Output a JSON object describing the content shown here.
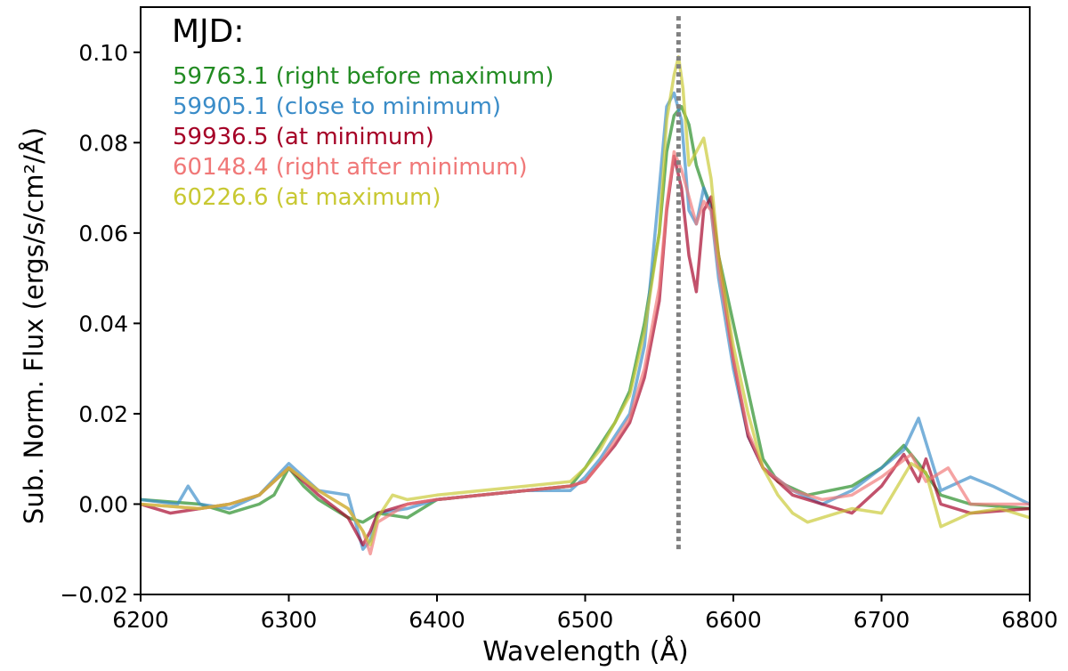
{
  "chart_data": {
    "type": "line",
    "title": "",
    "xlabel": "Wavelength (Å)",
    "ylabel": "Sub. Norm. Flux (ergs/s/cm²/Å)",
    "xlim": [
      6200,
      6800
    ],
    "ylim": [
      -0.02,
      0.11
    ],
    "xticks": [
      6200,
      6300,
      6400,
      6500,
      6600,
      6700,
      6800
    ],
    "xtick_labels": [
      "6200",
      "6300",
      "6400",
      "6500",
      "6600",
      "6700",
      "6800"
    ],
    "yticks": [
      -0.02,
      0.0,
      0.02,
      0.04,
      0.06,
      0.08,
      0.1
    ],
    "ytick_labels": [
      "−0.02",
      "0.00",
      "0.02",
      "0.04",
      "0.06",
      "0.08",
      "0.10"
    ],
    "grid": false,
    "legend": {
      "title": "MJD:",
      "position": "top-left"
    },
    "reference_line": {
      "x": 6563,
      "style": "dotted",
      "color": "#808080"
    },
    "series": [
      {
        "name": "59763.1 (right before maximum)",
        "color": "#228B22",
        "x": [
          6200,
          6240,
          6260,
          6280,
          6290,
          6300,
          6310,
          6320,
          6340,
          6350,
          6355,
          6360,
          6380,
          6400,
          6430,
          6460,
          6490,
          6500,
          6510,
          6520,
          6530,
          6540,
          6550,
          6555,
          6560,
          6565,
          6570,
          6575,
          6580,
          6585,
          6590,
          6600,
          6610,
          6620,
          6630,
          6650,
          6680,
          6700,
          6715,
          6725,
          6740,
          6760,
          6800
        ],
        "y": [
          0.001,
          0.0,
          -0.002,
          0.0,
          0.002,
          0.008,
          0.004,
          0.001,
          -0.003,
          -0.004,
          -0.003,
          -0.002,
          -0.003,
          0.001,
          0.002,
          0.003,
          0.004,
          0.008,
          0.013,
          0.018,
          0.025,
          0.04,
          0.06,
          0.078,
          0.086,
          0.088,
          0.084,
          0.075,
          0.07,
          0.066,
          0.055,
          0.04,
          0.025,
          0.01,
          0.005,
          0.002,
          0.004,
          0.008,
          0.013,
          0.009,
          0.002,
          0.0,
          -0.001
        ]
      },
      {
        "name": "59905.1 (close to minimum)",
        "color": "#3a8cc8",
        "x": [
          6200,
          6225,
          6232,
          6240,
          6260,
          6280,
          6300,
          6320,
          6340,
          6350,
          6355,
          6360,
          6380,
          6400,
          6430,
          6460,
          6490,
          6500,
          6510,
          6520,
          6530,
          6540,
          6550,
          6555,
          6560,
          6565,
          6570,
          6575,
          6580,
          6585,
          6590,
          6600,
          6610,
          6620,
          6640,
          6660,
          6680,
          6700,
          6715,
          6725,
          6740,
          6760,
          6775,
          6800
        ],
        "y": [
          0.001,
          0.0,
          0.004,
          0.0,
          -0.001,
          0.002,
          0.009,
          0.003,
          0.002,
          -0.01,
          -0.008,
          -0.002,
          -0.001,
          0.001,
          0.002,
          0.003,
          0.003,
          0.006,
          0.01,
          0.015,
          0.02,
          0.035,
          0.07,
          0.088,
          0.091,
          0.085,
          0.065,
          0.062,
          0.07,
          0.065,
          0.05,
          0.03,
          0.015,
          0.008,
          0.003,
          0.0,
          0.003,
          0.008,
          0.012,
          0.019,
          0.003,
          0.006,
          0.004,
          0.0
        ]
      },
      {
        "name": "59936.5 (at minimum)",
        "color": "#a50026",
        "x": [
          6200,
          6220,
          6240,
          6260,
          6280,
          6300,
          6320,
          6340,
          6350,
          6355,
          6360,
          6380,
          6400,
          6430,
          6460,
          6490,
          6500,
          6510,
          6520,
          6530,
          6540,
          6550,
          6555,
          6560,
          6565,
          6570,
          6575,
          6580,
          6585,
          6590,
          6600,
          6610,
          6620,
          6640,
          6660,
          6680,
          6700,
          6715,
          6725,
          6730,
          6740,
          6760,
          6800
        ],
        "y": [
          0.0,
          -0.002,
          -0.001,
          0.0,
          0.002,
          0.008,
          0.002,
          -0.003,
          -0.009,
          -0.006,
          -0.002,
          0.0,
          0.001,
          0.002,
          0.003,
          0.004,
          0.005,
          0.009,
          0.013,
          0.018,
          0.028,
          0.045,
          0.065,
          0.077,
          0.07,
          0.055,
          0.047,
          0.065,
          0.068,
          0.055,
          0.032,
          0.015,
          0.008,
          0.002,
          0.0,
          -0.002,
          0.004,
          0.011,
          0.005,
          0.01,
          0.0,
          -0.002,
          -0.001
        ]
      },
      {
        "name": "60148.4 (right after minimum)",
        "color": "#f07878",
        "x": [
          6200,
          6240,
          6260,
          6280,
          6300,
          6320,
          6340,
          6350,
          6355,
          6360,
          6380,
          6400,
          6430,
          6460,
          6490,
          6500,
          6510,
          6520,
          6530,
          6540,
          6550,
          6555,
          6560,
          6565,
          6570,
          6575,
          6580,
          6585,
          6590,
          6600,
          6610,
          6620,
          6640,
          6660,
          6680,
          6700,
          6720,
          6730,
          6745,
          6760,
          6800
        ],
        "y": [
          0.0,
          -0.001,
          0.0,
          0.002,
          0.008,
          0.003,
          -0.001,
          -0.006,
          -0.011,
          -0.004,
          0.0,
          0.001,
          0.002,
          0.003,
          0.004,
          0.005,
          0.009,
          0.014,
          0.019,
          0.03,
          0.048,
          0.066,
          0.078,
          0.074,
          0.068,
          0.062,
          0.067,
          0.065,
          0.052,
          0.032,
          0.016,
          0.008,
          0.003,
          0.001,
          0.002,
          0.006,
          0.011,
          0.005,
          0.008,
          0.0,
          0.0
        ]
      },
      {
        "name": "60226.6 (at maximum)",
        "color": "#c8c832",
        "x": [
          6200,
          6240,
          6260,
          6280,
          6300,
          6320,
          6340,
          6350,
          6355,
          6360,
          6370,
          6380,
          6400,
          6430,
          6460,
          6490,
          6500,
          6510,
          6520,
          6530,
          6540,
          6550,
          6555,
          6560,
          6563,
          6566,
          6570,
          6575,
          6580,
          6585,
          6590,
          6600,
          6610,
          6620,
          6630,
          6640,
          6650,
          6660,
          6680,
          6700,
          6720,
          6730,
          6740,
          6760,
          6780,
          6800
        ],
        "y": [
          0.0,
          -0.001,
          0.0,
          0.002,
          0.008,
          0.003,
          -0.001,
          -0.006,
          -0.009,
          -0.003,
          0.002,
          0.001,
          0.002,
          0.003,
          0.004,
          0.005,
          0.008,
          0.012,
          0.018,
          0.024,
          0.038,
          0.06,
          0.085,
          0.095,
          0.099,
          0.092,
          0.075,
          0.078,
          0.081,
          0.072,
          0.055,
          0.035,
          0.02,
          0.008,
          0.002,
          -0.002,
          -0.004,
          -0.003,
          -0.001,
          -0.002,
          0.009,
          0.007,
          -0.005,
          -0.002,
          -0.001,
          -0.003
        ]
      }
    ]
  }
}
